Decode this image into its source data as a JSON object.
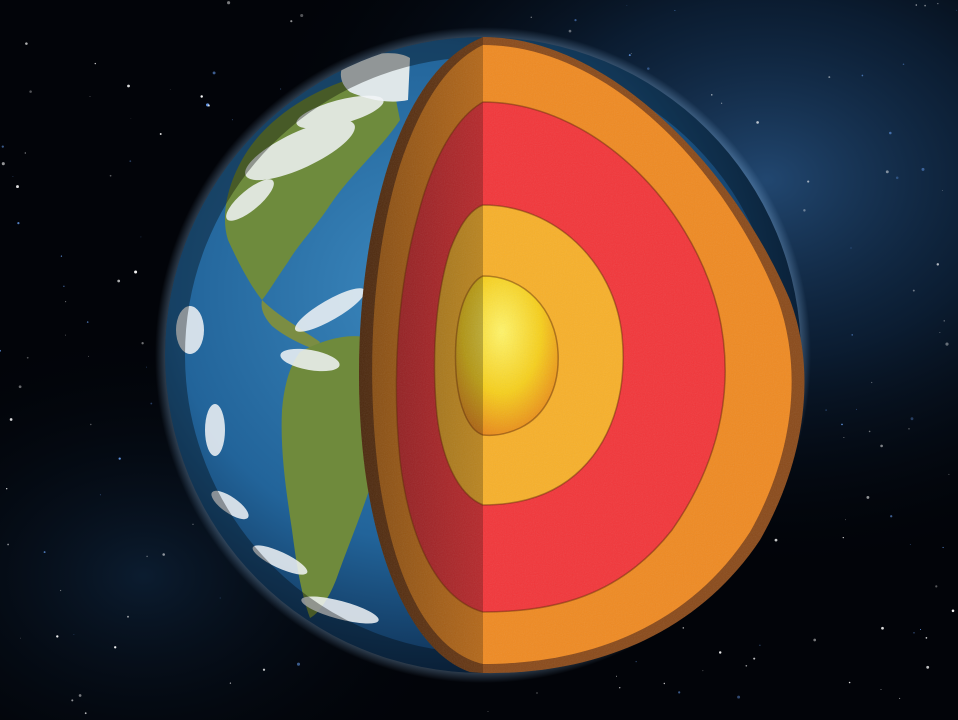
{
  "scene": {
    "subject": "earth-cross-section",
    "background_color": "#020409",
    "nebula_color": "#1f4a7a",
    "planet": {
      "ocean_color": "#2a6fa3",
      "ocean_dark_color": "#0e2f55",
      "land_color": "#6f8a3c",
      "cloud_color": "#f2f5f7"
    },
    "layers": [
      {
        "name": "crust",
        "color": "#8a4a1a"
      },
      {
        "name": "upper-mantle",
        "color": "#ef8a22"
      },
      {
        "name": "lower-mantle",
        "color": "#f2363a"
      },
      {
        "name": "outer-core",
        "color": "#f7b02a"
      },
      {
        "name": "inner-core",
        "color": "#f6d21e"
      }
    ]
  }
}
